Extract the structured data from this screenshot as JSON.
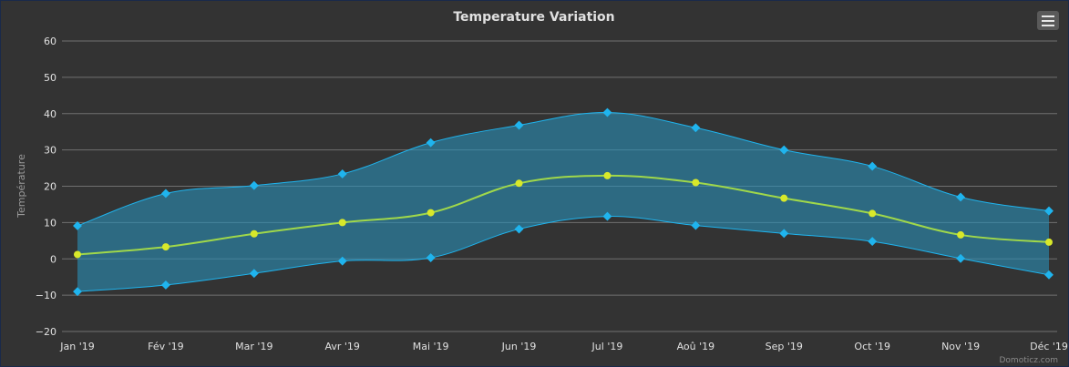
{
  "chart_data": {
    "type": "arearange-line",
    "title": "Temperature Variation",
    "ylabel": "Température",
    "ylim": [
      -20,
      60
    ],
    "yticks": [
      -20,
      -10,
      0,
      10,
      20,
      30,
      40,
      50,
      60
    ],
    "categories": [
      "Jan '19",
      "Fév '19",
      "Mar '19",
      "Avr '19",
      "Mai '19",
      "Jun '19",
      "Jul '19",
      "Aoû '19",
      "Sep '19",
      "Oct '19",
      "Nov '19",
      "Déc '19"
    ],
    "range": {
      "low": [
        -9,
        -7.2,
        -4,
        -0.6,
        0.3,
        8.2,
        11.7,
        9.2,
        7,
        4.8,
        0.1,
        -4.4
      ],
      "high": [
        9.1,
        18,
        20.2,
        23.4,
        32,
        36.8,
        40.3,
        36.1,
        30,
        25.5,
        17,
        13.2
      ]
    },
    "series": [
      {
        "values": [
          1.2,
          3.3,
          6.9,
          10,
          12.7,
          20.8,
          22.9,
          21,
          16.7,
          12.5,
          6.6,
          4.6
        ]
      }
    ],
    "grid": true,
    "legend": "none",
    "colors": {
      "background": "#333333",
      "grid": "#707070",
      "range_fill": "#2a8fb8",
      "range_line": "#1fb4ee",
      "avg_line": "#a0d84a",
      "avg_marker": "#d8e82a",
      "text": "#e0e0e0"
    }
  },
  "toolbar": {
    "menu_icon": "hamburger-menu-icon"
  },
  "credits": "Domoticz.com"
}
